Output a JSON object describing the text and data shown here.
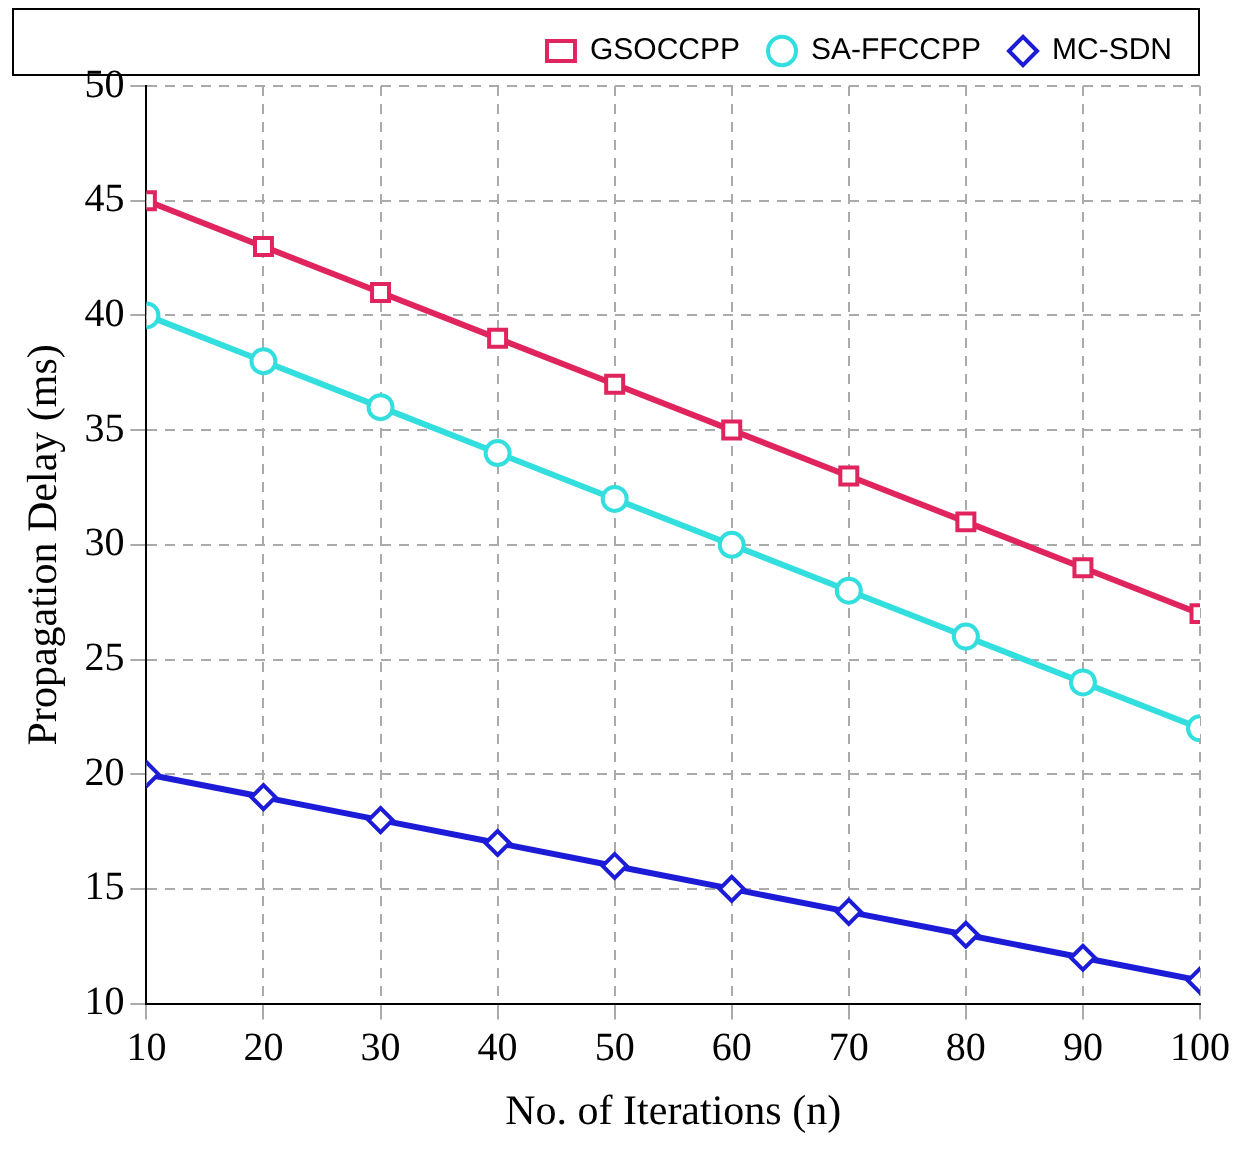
{
  "chart_data": {
    "type": "line",
    "xlabel": "No. of Iterations (n)",
    "ylabel": "Propagation Delay (ms)",
    "x": [
      10,
      20,
      30,
      40,
      50,
      60,
      70,
      80,
      90,
      100
    ],
    "series": [
      {
        "name": "GSOCCPP",
        "color": "#e0245e",
        "marker": "square",
        "values": [
          45,
          43,
          41,
          39,
          37,
          35,
          33,
          31,
          29,
          27
        ]
      },
      {
        "name": "SA-FFCCPP",
        "color": "#33dede",
        "marker": "circle",
        "values": [
          40,
          38,
          36,
          34,
          32,
          30,
          28,
          26,
          24,
          22
        ]
      },
      {
        "name": "MC-SDN",
        "color": "#1c1cd8",
        "marker": "diamond",
        "values": [
          20,
          19,
          18,
          17,
          16,
          15,
          14,
          13,
          12,
          11
        ]
      }
    ],
    "xlim": [
      10,
      100
    ],
    "xticks": [
      10,
      20,
      30,
      40,
      50,
      60,
      70,
      80,
      90,
      100
    ],
    "ylim": [
      10,
      50
    ],
    "yticks": [
      10,
      15,
      20,
      25,
      30,
      35,
      40,
      45,
      50
    ],
    "grid": true,
    "legend": "top",
    "line_style": "solid"
  }
}
